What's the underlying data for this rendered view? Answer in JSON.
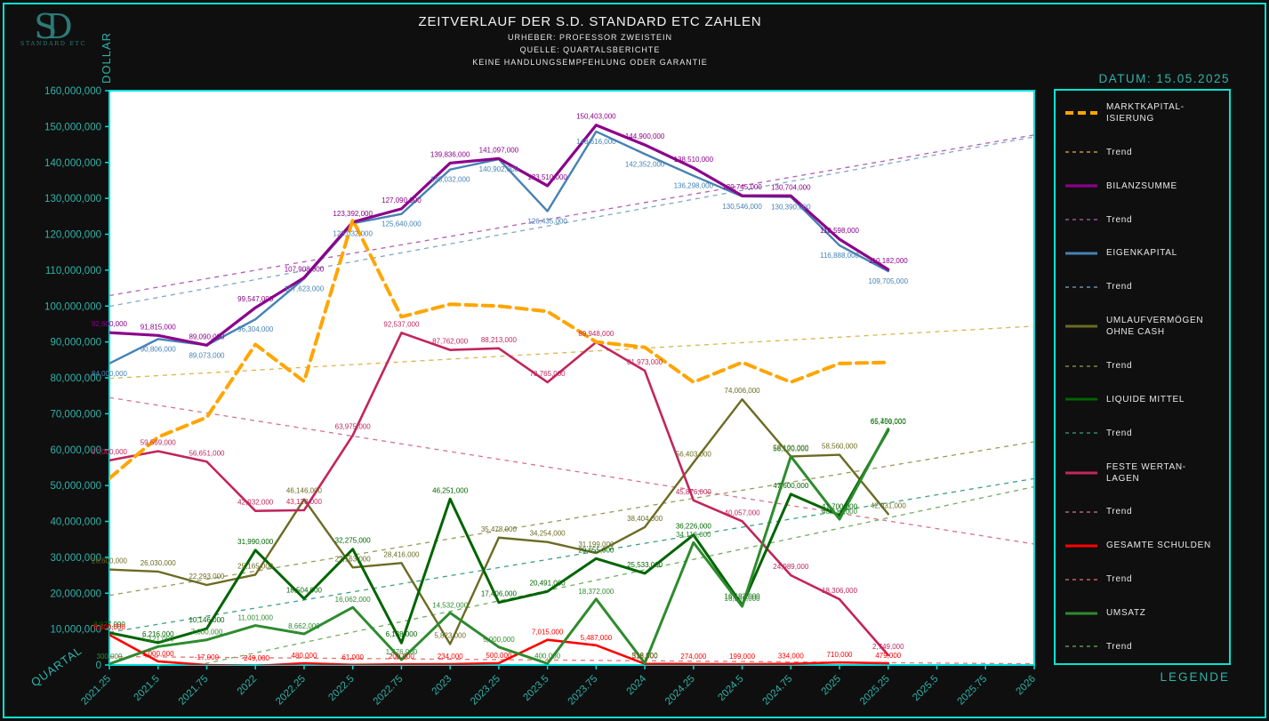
{
  "page": {
    "title": "ZEITVERLAUF DER S.D. STANDARD ETC ZAHLEN",
    "subtitles": [
      "URHEBER: PROFESSOR ZWEISTEIN",
      "QUELLE: QUARTALSBERICHTE",
      "KEINE HANDLUNGSEMPFEHLUNG ODER GARANTIE"
    ],
    "date_label": "DATUM: 15.05.2025",
    "legend_title": "LEGENDE",
    "trend_label": "Trend",
    "y_axis_label": "DOLLAR",
    "x_axis_label": "QUARTAL",
    "logo": {
      "letter1": "S",
      "letter2": "D",
      "subtext": "STANDARD ETC"
    }
  },
  "colors": {
    "background": "#0f0f0f",
    "frame": "#00e5d2",
    "plot_border": "#00dede",
    "plot_background": "#ffffff",
    "tick_text": "#2fb3a9",
    "title_text": "#f2f2f2",
    "legend_text": "#e8e8e8"
  },
  "chart_data": {
    "type": "line",
    "title": "ZEITVERLAUF DER S.D. STANDARD ETC ZAHLEN",
    "xlabel": "QUARTAL",
    "ylabel": "DOLLAR",
    "grid": false,
    "legend_position": "right",
    "xlim": [
      2021.25,
      2026
    ],
    "ylim": [
      0,
      160000000
    ],
    "x_tick_step": 0.25,
    "y_tick_step": 10000000,
    "x": [
      2021.25,
      2021.5,
      2021.75,
      2022,
      2022.25,
      2022.5,
      2022.75,
      2023,
      2023.25,
      2023.5,
      2023.75,
      2024,
      2024.25,
      2024.5,
      2024.75,
      2025,
      2025.25
    ],
    "series": [
      {
        "id": "marktkapitalisierung",
        "name": "MARKTKAPITALISIERUNG",
        "legend_label": "MARKTKAPITAL-\nISIERUNG",
        "color": "#FFA500",
        "trend_color": "#dcb44c",
        "width": 4,
        "dash": "12,7",
        "z": 8,
        "label_offset": -7,
        "show_point_labels": false,
        "values": [
          52000000,
          63500000,
          69000000,
          89300000,
          79000000,
          124000000,
          97000000,
          100500000,
          100000000,
          98500000,
          90000000,
          88500000,
          78800000,
          84300000,
          78800000,
          84000000,
          84300000
        ]
      },
      {
        "id": "bilanzsumme",
        "name": "BILANZSUMME",
        "legend_label": "BILANZSUMME",
        "color": "#8b008b",
        "trend_color": "#b35fb3",
        "width": 3.2,
        "dash": null,
        "z": 7,
        "label_offset": -7,
        "show_point_labels": true,
        "values": [
          92600000,
          91815000,
          89090000,
          99547000,
          107908000,
          123392000,
          127090000,
          139836000,
          141097000,
          133510000,
          150403000,
          144900000,
          138510000,
          130745000,
          130704000,
          118598000,
          110182000
        ]
      },
      {
        "id": "eigenkapital",
        "name": "EIGENKAPITAL",
        "legend_label": "EIGENKAPITAL",
        "color": "#4682B4",
        "trend_color": "#7fa7c9",
        "width": 2.4,
        "dash": null,
        "z": 6,
        "label_offset": 14,
        "show_point_labels": true,
        "values": [
          84000000,
          90806000,
          89073000,
          96304000,
          107623000,
          123032000,
          125640000,
          138032000,
          140902000,
          126435000,
          148616000,
          142352000,
          136298000,
          130546000,
          130390000,
          116888000,
          109705000
        ]
      },
      {
        "id": "umlaufvermoegen",
        "name": "UMLAUFVERMÖGEN OHNE CASH",
        "legend_label": "UMLAUFVERMÖGEN\nOHNE CASH",
        "color": "#6b6b23",
        "trend_color": "#9a9a55",
        "width": 2.4,
        "dash": null,
        "z": 2,
        "label_offset": -7,
        "show_point_labels": true,
        "values": [
          26600000,
          26030000,
          22293000,
          25165000,
          46146000,
          27163000,
          28416000,
          5823000,
          35478000,
          34254000,
          31199000,
          38404000,
          56403000,
          74006000,
          58100000,
          58560000,
          42031000
        ]
      },
      {
        "id": "liquide-mittel",
        "name": "LIQUIDE MITTEL",
        "legend_label": "LIQUIDE MITTEL",
        "color": "#006400",
        "trend_color": "#3f9e86",
        "width": 3,
        "dash": null,
        "z": 4,
        "label_offset": -7,
        "show_point_labels": true,
        "values": [
          8977000,
          6216000,
          10146000,
          31990000,
          18504000,
          32275000,
          6138000,
          46251000,
          17406000,
          20491000,
          29655000,
          25533000,
          36226000,
          16682000,
          47600000,
          41700000,
          65400000
        ]
      },
      {
        "id": "feste-wertanlagen",
        "name": "FESTE WERTANLAGEN",
        "legend_label": "FESTE WERTAN-\nLAGEN",
        "color": "#c2255c",
        "trend_color": "#d4738f",
        "width": 2.6,
        "dash": null,
        "z": 3,
        "label_offset": -7,
        "show_point_labels": true,
        "values": [
          57000000,
          59569000,
          56651000,
          42932000,
          43128000,
          63975000,
          92537000,
          87762000,
          88213000,
          78765000,
          89948000,
          81973000,
          45876000,
          40057000,
          24989000,
          18306000,
          2749000
        ]
      },
      {
        "id": "gesamte-schulden",
        "name": "GESAMTE SCHULDEN",
        "legend_label": "GESAMTE SCHULDEN",
        "color": "#ff0000",
        "trend_color": "#e57373",
        "width": 2.6,
        "dash": null,
        "z": 1,
        "label_offset": -6,
        "show_point_labels": true,
        "values": [
          8400000,
          1000000,
          -17000,
          -249000,
          480000,
          61000,
          200000,
          234000,
          500000,
          7015000,
          5487000,
          318000,
          274000,
          199000,
          334000,
          710000,
          479000
        ]
      },
      {
        "id": "umsatz",
        "name": "UMSATZ",
        "legend_label": "UMSATZ",
        "color": "#2e8b2e",
        "trend_color": "#6fae5f",
        "width": 3,
        "dash": null,
        "z": 5,
        "label_offset": -6,
        "show_point_labels": true,
        "values": [
          300000,
          5121000,
          7000000,
          11001000,
          8662000,
          16062000,
          1476000,
          14532000,
          5000000,
          400000,
          18372000,
          518000,
          34118000,
          16332000,
          58120000,
          40610000,
          65751000
        ]
      }
    ]
  }
}
